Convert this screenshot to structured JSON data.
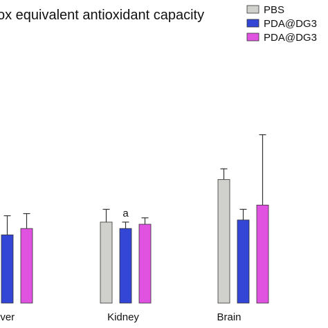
{
  "chart_data": {
    "type": "bar",
    "title": "ox equivalent antioxidant capacity",
    "categories": [
      "iver",
      "Kidney",
      "Brain"
    ],
    "series": [
      {
        "name": "PBS",
        "color": "#d0d0cc",
        "values": [
          null,
          38,
          58
        ],
        "errors": [
          null,
          6,
          5
        ]
      },
      {
        "name": "PDA@DG3",
        "color": "#3346d6",
        "values": [
          32,
          35,
          39
        ],
        "errors": [
          9,
          3,
          5
        ]
      },
      {
        "name": "PDA@DG3",
        "color": "#e052e0",
        "values": [
          35,
          37,
          46
        ],
        "errors": [
          7,
          3,
          33
        ]
      }
    ],
    "annotations": [
      {
        "text": "a",
        "category": "Kidney",
        "series": 1
      }
    ],
    "legend_position": "top-right",
    "grid": false
  }
}
